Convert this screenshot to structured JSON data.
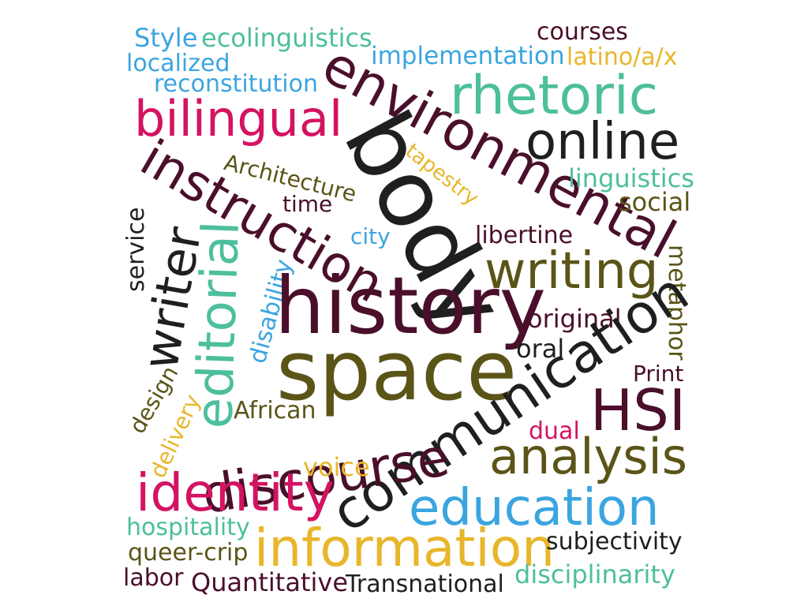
{
  "colors": {
    "maroon": "#4a0f2b",
    "black": "#1f1f1f",
    "teal": "#4dbf9d",
    "olive": "#5b5417",
    "magenta": "#d41361",
    "blue": "#3ba5e0",
    "gold": "#e8b62a"
  },
  "words": [
    {
      "id": "style",
      "text": "Style",
      "color": "blue"
    },
    {
      "id": "ecolinguistics",
      "text": "ecolinguistics",
      "color": "teal"
    },
    {
      "id": "localized",
      "text": "localized",
      "color": "blue"
    },
    {
      "id": "reconstitution",
      "text": "reconstitution",
      "color": "blue"
    },
    {
      "id": "implementation",
      "text": "implementation",
      "color": "blue"
    },
    {
      "id": "courses",
      "text": "courses",
      "color": "maroon"
    },
    {
      "id": "latino",
      "text": "latino/a/x",
      "color": "gold"
    },
    {
      "id": "rhetoric",
      "text": "rhetoric",
      "color": "teal"
    },
    {
      "id": "environmental",
      "text": "environmental",
      "color": "maroon"
    },
    {
      "id": "bilingual",
      "text": "bilingual",
      "color": "magenta"
    },
    {
      "id": "online",
      "text": "online",
      "color": "black"
    },
    {
      "id": "body",
      "text": "body",
      "color": "black"
    },
    {
      "id": "tapestry",
      "text": "tapestry",
      "color": "gold"
    },
    {
      "id": "instruction",
      "text": "instruction",
      "color": "maroon"
    },
    {
      "id": "architecture",
      "text": "Architecture",
      "color": "olive"
    },
    {
      "id": "linguistics",
      "text": "linguistics",
      "color": "teal"
    },
    {
      "id": "social",
      "text": "social",
      "color": "olive"
    },
    {
      "id": "time",
      "text": "time",
      "color": "maroon"
    },
    {
      "id": "city",
      "text": "city",
      "color": "blue"
    },
    {
      "id": "libertine",
      "text": "libertine",
      "color": "maroon"
    },
    {
      "id": "service",
      "text": "service",
      "color": "black"
    },
    {
      "id": "writer",
      "text": "writer",
      "color": "black"
    },
    {
      "id": "editorial",
      "text": "editorial",
      "color": "teal"
    },
    {
      "id": "disability",
      "text": "disability",
      "color": "blue"
    },
    {
      "id": "writing",
      "text": "writing",
      "color": "olive"
    },
    {
      "id": "metaphor",
      "text": "metaphor",
      "color": "olive"
    },
    {
      "id": "history",
      "text": "history",
      "color": "maroon"
    },
    {
      "id": "original",
      "text": "original",
      "color": "maroon"
    },
    {
      "id": "oral",
      "text": "oral",
      "color": "black"
    },
    {
      "id": "space",
      "text": "space",
      "color": "olive"
    },
    {
      "id": "print",
      "text": "Print",
      "color": "maroon"
    },
    {
      "id": "hsi",
      "text": "HSI",
      "color": "maroon"
    },
    {
      "id": "communication",
      "text": "communication",
      "color": "black"
    },
    {
      "id": "design",
      "text": "design",
      "color": "olive"
    },
    {
      "id": "delivery",
      "text": "delivery",
      "color": "gold"
    },
    {
      "id": "african",
      "text": "African",
      "color": "olive"
    },
    {
      "id": "discourse",
      "text": "discourse",
      "color": "maroon"
    },
    {
      "id": "dual",
      "text": "dual",
      "color": "magenta"
    },
    {
      "id": "analysis",
      "text": "analysis",
      "color": "olive"
    },
    {
      "id": "voice",
      "text": "voice",
      "color": "gold"
    },
    {
      "id": "identity",
      "text": "identity",
      "color": "magenta"
    },
    {
      "id": "education",
      "text": "education",
      "color": "blue"
    },
    {
      "id": "hospitality",
      "text": "hospitality",
      "color": "teal"
    },
    {
      "id": "queer_crip",
      "text": "queer-crip",
      "color": "olive"
    },
    {
      "id": "information",
      "text": "information",
      "color": "gold"
    },
    {
      "id": "subjectivity",
      "text": "subjectivity",
      "color": "black"
    },
    {
      "id": "labor",
      "text": "labor",
      "color": "maroon"
    },
    {
      "id": "quantitative",
      "text": "Quantitative",
      "color": "maroon"
    },
    {
      "id": "transnational",
      "text": "Transnational",
      "color": "black"
    },
    {
      "id": "disciplinarity",
      "text": "disciplinarity",
      "color": "teal"
    }
  ]
}
